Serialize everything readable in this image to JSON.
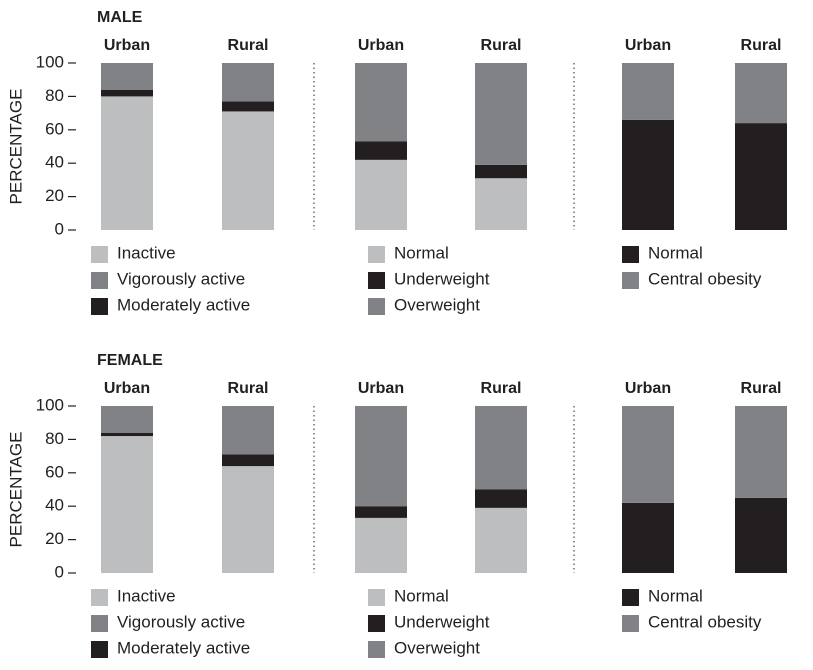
{
  "chart_data": [
    {
      "type": "bar",
      "stacked": true,
      "title": "MALE",
      "ylabel": "PERCENTAGE",
      "ylim": [
        0,
        100
      ],
      "yticks": [
        0,
        20,
        40,
        60,
        80,
        100
      ],
      "groups": [
        {
          "categories": [
            "Urban",
            "Rural"
          ],
          "legend_order": [
            0,
            2,
            1
          ],
          "series": [
            {
              "name": "Inactive",
              "color": "#bcbec0",
              "values": [
                80,
                71
              ]
            },
            {
              "name": "Moderately active",
              "color": "#231f20",
              "values": [
                4,
                6
              ]
            },
            {
              "name": "Vigorously active",
              "color": "#808285",
              "values": [
                16,
                23
              ]
            }
          ]
        },
        {
          "categories": [
            "Urban",
            "Rural"
          ],
          "legend_order": [
            0,
            1,
            2
          ],
          "series": [
            {
              "name": "Normal",
              "color": "#bcbec0",
              "values": [
                42,
                31
              ]
            },
            {
              "name": "Underweight",
              "color": "#231f20",
              "values": [
                11,
                8
              ]
            },
            {
              "name": "Overweight",
              "color": "#808285",
              "values": [
                47,
                61
              ]
            }
          ]
        },
        {
          "categories": [
            "Urban",
            "Rural"
          ],
          "legend_order": [
            0,
            1
          ],
          "series": [
            {
              "name": "Normal",
              "color": "#231f20",
              "values": [
                66,
                64
              ]
            },
            {
              "name": "Central obesity",
              "color": "#808285",
              "values": [
                34,
                36
              ]
            }
          ]
        }
      ]
    },
    {
      "type": "bar",
      "stacked": true,
      "title": "FEMALE",
      "ylabel": "PERCENTAGE",
      "ylim": [
        0,
        100
      ],
      "yticks": [
        0,
        20,
        40,
        60,
        80,
        100
      ],
      "groups": [
        {
          "categories": [
            "Urban",
            "Rural"
          ],
          "legend_order": [
            0,
            2,
            1
          ],
          "series": [
            {
              "name": "Inactive",
              "color": "#bcbec0",
              "values": [
                82,
                64
              ]
            },
            {
              "name": "Moderately active",
              "color": "#231f20",
              "values": [
                2,
                7
              ]
            },
            {
              "name": "Vigorously active",
              "color": "#808285",
              "values": [
                16,
                29
              ]
            }
          ]
        },
        {
          "categories": [
            "Urban",
            "Rural"
          ],
          "legend_order": [
            0,
            1,
            2
          ],
          "series": [
            {
              "name": "Normal",
              "color": "#bcbec0",
              "values": [
                33,
                39
              ]
            },
            {
              "name": "Underweight",
              "color": "#231f20",
              "values": [
                7,
                11
              ]
            },
            {
              "name": "Overweight",
              "color": "#808285",
              "values": [
                60,
                50
              ]
            }
          ]
        },
        {
          "categories": [
            "Urban",
            "Rural"
          ],
          "legend_order": [
            0,
            1
          ],
          "series": [
            {
              "name": "Normal",
              "color": "#231f20",
              "values": [
                42,
                45
              ]
            },
            {
              "name": "Central obesity",
              "color": "#808285",
              "values": [
                58,
                55
              ]
            }
          ]
        }
      ]
    }
  ]
}
